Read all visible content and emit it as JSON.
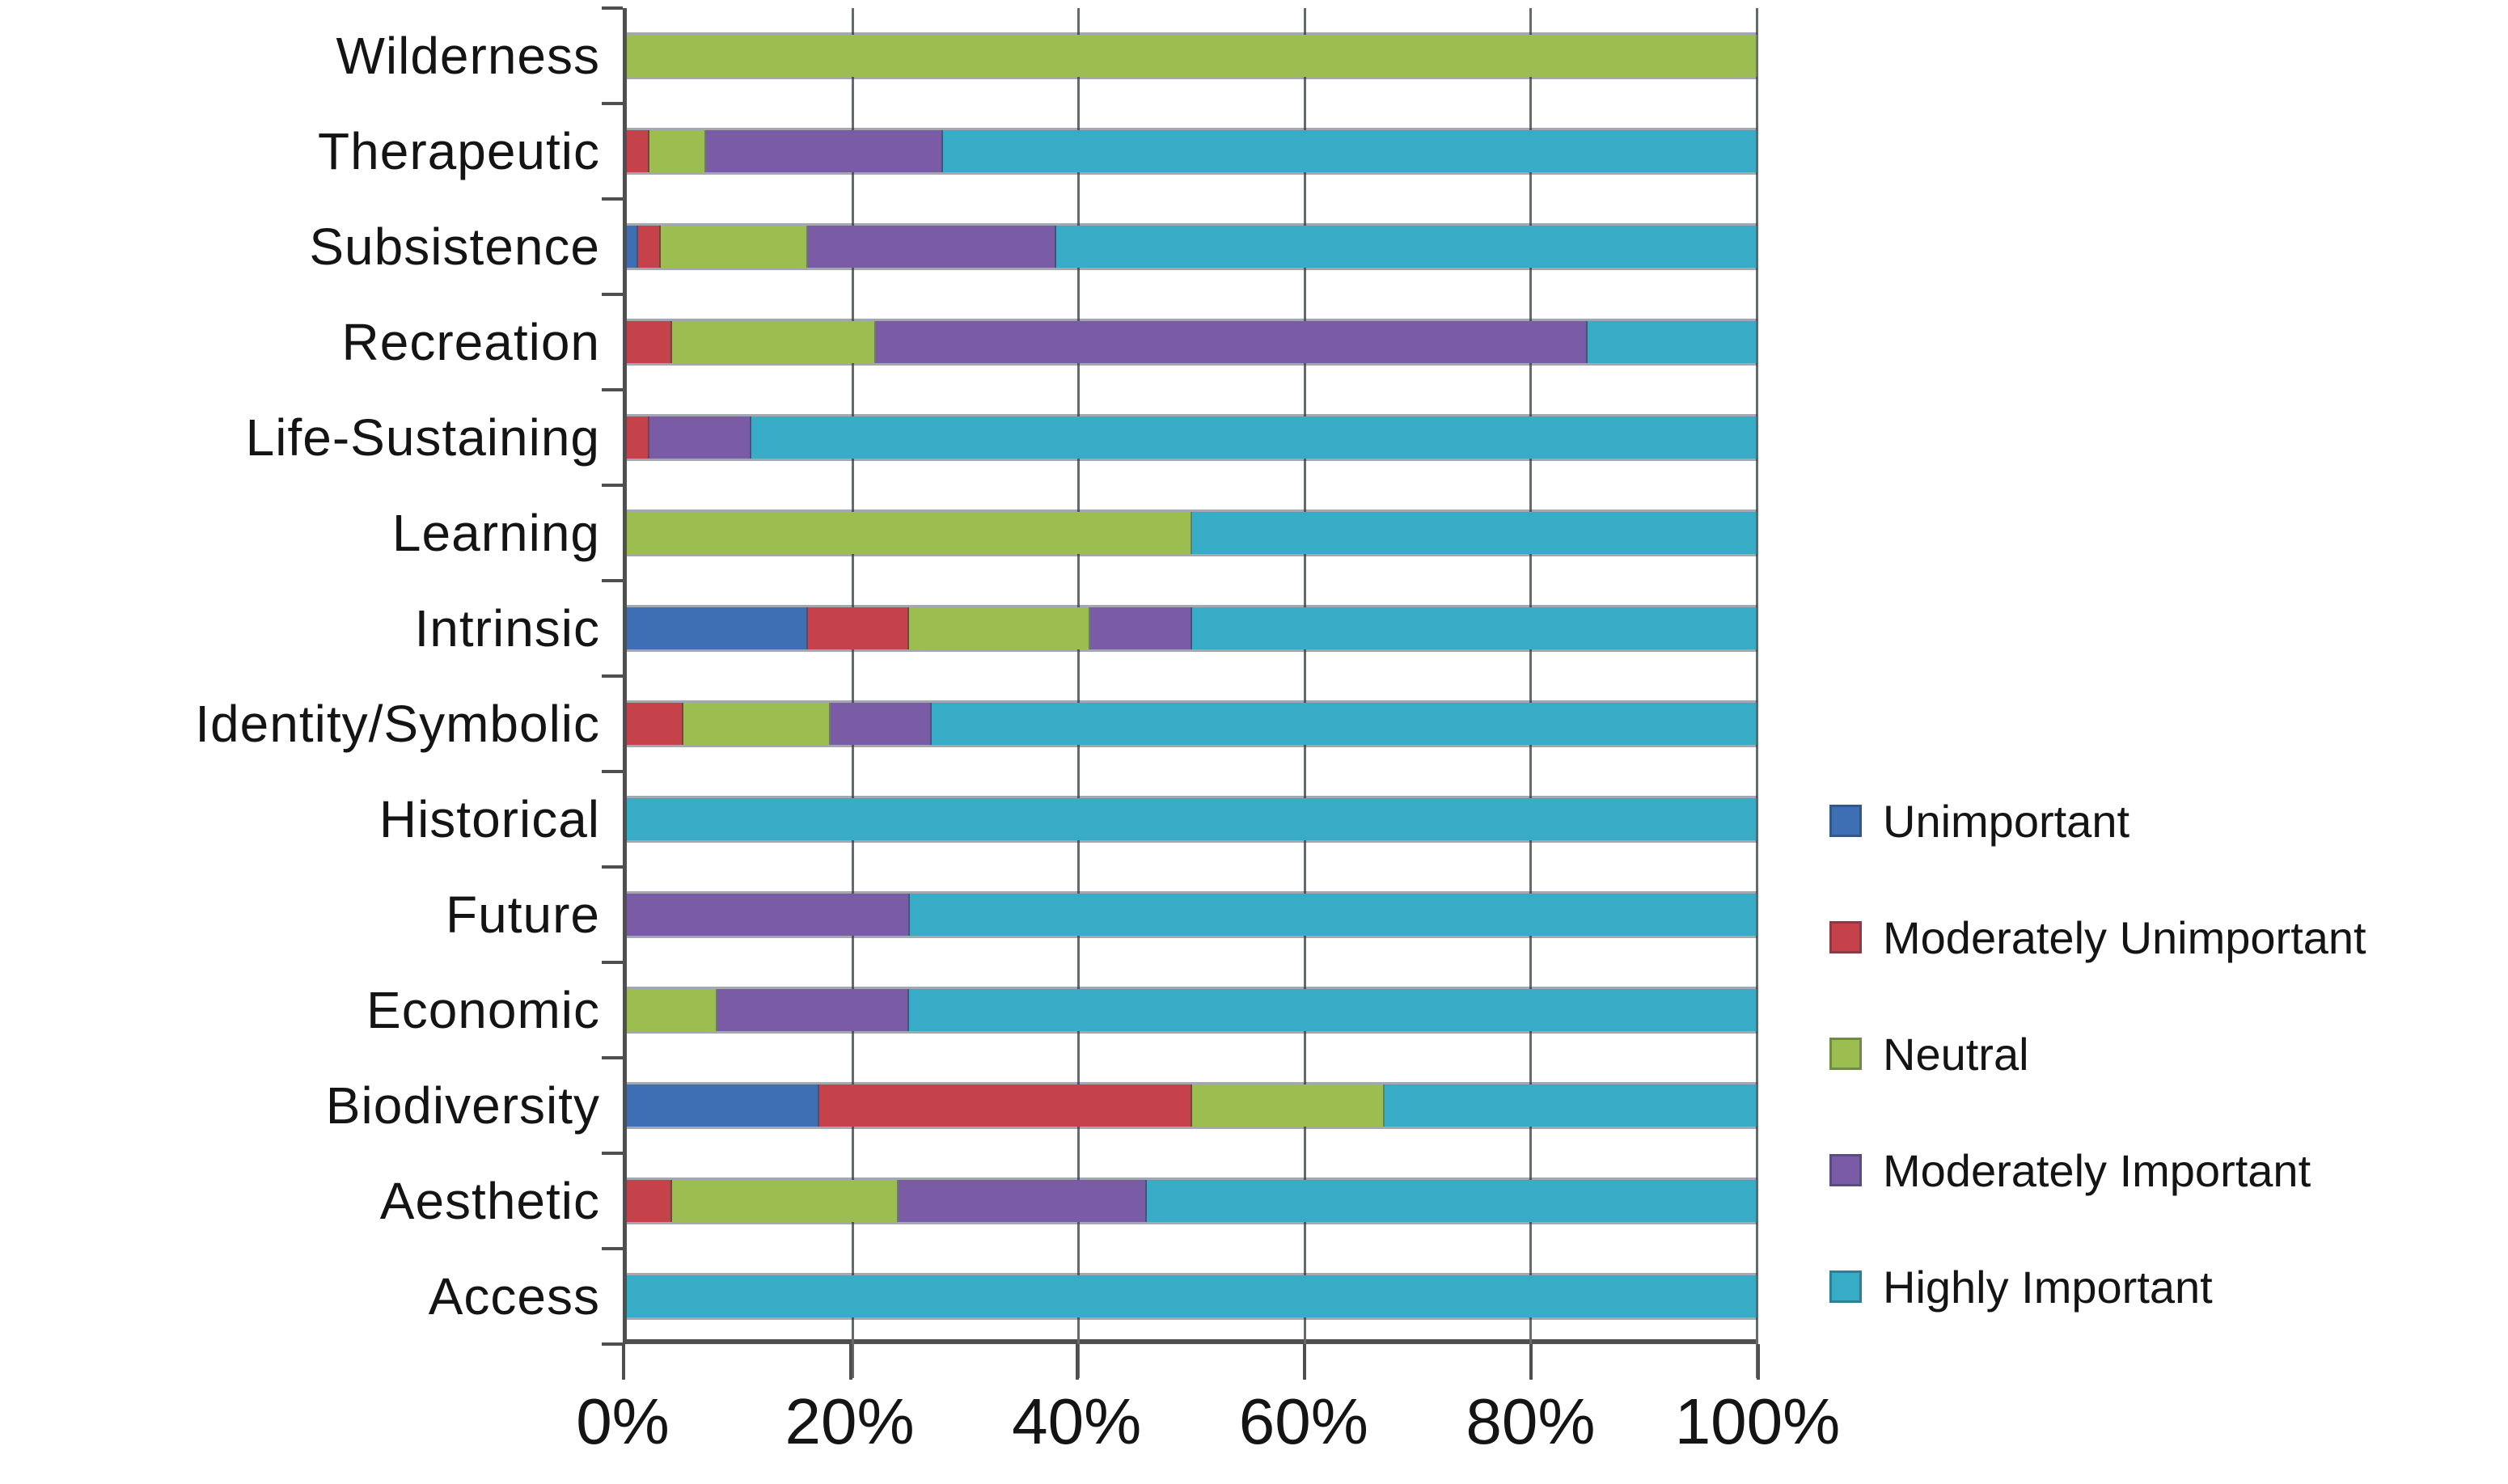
{
  "figure": {
    "background": "#ffffff",
    "axis_color": "#4f4f4f",
    "grid_color": "#666a6d",
    "text_color": "#141414"
  },
  "chart_data": {
    "type": "bar",
    "orientation": "horizontal-stacked",
    "title": "",
    "xlabel": "",
    "ylabel": "",
    "xlim": [
      0,
      100
    ],
    "grid": true,
    "x_ticks": [
      "0%",
      "20%",
      "40%",
      "60%",
      "80%",
      "100%"
    ],
    "x_tick_values": [
      0,
      20,
      40,
      60,
      80,
      100
    ],
    "categories": [
      "Wilderness",
      "Therapeutic",
      "Subsistence",
      "Recreation",
      "Life-Sustaining",
      "Learning",
      "Intrinsic",
      "Identity/Symbolic",
      "Historical",
      "Future",
      "Economic",
      "Biodiversity",
      "Aesthetic",
      "Access"
    ],
    "series": [
      {
        "name": "Unimportant",
        "color": "#3e6fb4",
        "values": [
          0,
          0,
          1,
          0,
          0,
          0,
          16,
          0,
          0,
          0,
          0,
          17,
          0,
          0
        ]
      },
      {
        "name": "Moderately Unimportant",
        "color": "#c5424a",
        "values": [
          0,
          2,
          2,
          4,
          2,
          0,
          9,
          5,
          0,
          0,
          0,
          33,
          4,
          0
        ]
      },
      {
        "name": "Neutral",
        "color": "#9cbd4f",
        "values": [
          100,
          5,
          13,
          18,
          0,
          50,
          16,
          13,
          0,
          0,
          8,
          17,
          20,
          0
        ]
      },
      {
        "name": "Moderately Important",
        "color": "#7a5ca6",
        "values": [
          0,
          21,
          22,
          63,
          9,
          0,
          9,
          9,
          0,
          25,
          17,
          0,
          22,
          0
        ]
      },
      {
        "name": "Highly Important",
        "color": "#38abc6",
        "values": [
          0,
          72,
          62,
          15,
          89,
          50,
          50,
          73,
          100,
          75,
          75,
          33,
          54,
          100
        ]
      }
    ],
    "legend_position": "right"
  }
}
